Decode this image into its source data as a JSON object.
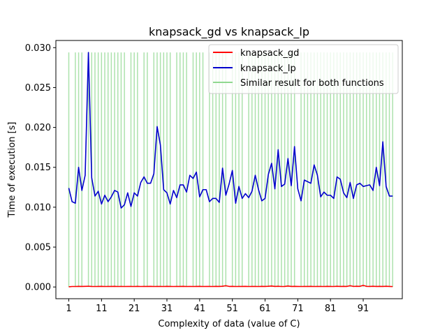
{
  "chart_data": {
    "type": "line",
    "title": "knapsack_gd vs knapsack_lp",
    "xlabel": "Complexity of data (value of C)",
    "ylabel": "Time of execution [s]",
    "xlim": [
      -2.95,
      102.95
    ],
    "ylim": [
      -0.00147,
      0.0309
    ],
    "xticks": [
      1,
      11,
      21,
      31,
      41,
      51,
      61,
      71,
      81,
      91
    ],
    "yticks": [
      0.0,
      0.005,
      0.01,
      0.015,
      0.02,
      0.025,
      0.03
    ],
    "ytick_labels": [
      "0.000",
      "0.005",
      "0.010",
      "0.015",
      "0.020",
      "0.025",
      "0.030"
    ],
    "grid": false,
    "legend_position": "top-right",
    "x": [
      1,
      2,
      3,
      4,
      5,
      6,
      7,
      8,
      9,
      10,
      11,
      12,
      13,
      14,
      15,
      16,
      17,
      18,
      19,
      20,
      21,
      22,
      23,
      24,
      25,
      26,
      27,
      28,
      29,
      30,
      31,
      32,
      33,
      34,
      35,
      36,
      37,
      38,
      39,
      40,
      41,
      42,
      43,
      44,
      45,
      46,
      47,
      48,
      49,
      50,
      51,
      52,
      53,
      54,
      55,
      56,
      57,
      58,
      59,
      60,
      61,
      62,
      63,
      64,
      65,
      66,
      67,
      68,
      69,
      70,
      71,
      72,
      73,
      74,
      75,
      76,
      77,
      78,
      79,
      80,
      81,
      82,
      83,
      84,
      85,
      86,
      87,
      88,
      89,
      90,
      91,
      92,
      93,
      94,
      95,
      96,
      97,
      98,
      99,
      100
    ],
    "series": [
      {
        "name": "knapsack_gd",
        "color": "#ff0000",
        "values": [
          2e-05,
          6e-05,
          6e-05,
          8e-05,
          7e-05,
          8e-05,
          9e-05,
          7e-05,
          6e-05,
          7e-05,
          8e-05,
          6e-05,
          7e-05,
          7e-05,
          8e-05,
          6e-05,
          7e-05,
          6e-05,
          7e-05,
          7e-05,
          6e-05,
          8e-05,
          6e-05,
          7e-05,
          7e-05,
          8e-05,
          6e-05,
          7e-05,
          7e-05,
          6e-05,
          8e-05,
          7e-05,
          6e-05,
          7e-05,
          7e-05,
          8e-05,
          6e-05,
          7e-05,
          6e-05,
          7e-05,
          8e-05,
          6e-05,
          7e-05,
          7e-05,
          6e-05,
          8e-05,
          7e-05,
          9e-05,
          0.00016,
          7e-05,
          8e-05,
          6e-05,
          7e-05,
          7e-05,
          8e-05,
          6e-05,
          7e-05,
          7e-05,
          6e-05,
          8e-05,
          7e-05,
          9e-05,
          0.00012,
          7e-05,
          9e-05,
          6e-05,
          7e-05,
          0.00012,
          7e-05,
          8e-05,
          7e-05,
          6e-05,
          7e-05,
          7e-05,
          8e-05,
          6e-05,
          7e-05,
          7e-05,
          6e-05,
          8e-05,
          7e-05,
          6e-05,
          9e-05,
          7e-05,
          8e-05,
          7e-05,
          0.00016,
          7e-05,
          9e-05,
          8e-05,
          0.0002,
          8e-05,
          7e-05,
          9e-05,
          7e-05,
          8e-05,
          7e-05,
          9e-05,
          7e-05,
          5e-05
        ]
      },
      {
        "name": "knapsack_lp",
        "color": "#0000cc",
        "values": [
          0.0124,
          0.0107,
          0.0105,
          0.015,
          0.0121,
          0.014,
          0.0294,
          0.0137,
          0.0114,
          0.012,
          0.0104,
          0.0115,
          0.0107,
          0.0113,
          0.0121,
          0.0119,
          0.0099,
          0.0103,
          0.0118,
          0.0101,
          0.0118,
          0.0114,
          0.0131,
          0.0138,
          0.013,
          0.013,
          0.0142,
          0.0201,
          0.0178,
          0.0122,
          0.0118,
          0.0104,
          0.0121,
          0.0112,
          0.0128,
          0.0128,
          0.0119,
          0.014,
          0.0136,
          0.0144,
          0.0113,
          0.0122,
          0.0122,
          0.0107,
          0.0111,
          0.0111,
          0.0106,
          0.0149,
          0.0115,
          0.0129,
          0.0146,
          0.0105,
          0.0126,
          0.0111,
          0.0117,
          0.0112,
          0.012,
          0.014,
          0.0122,
          0.0108,
          0.0111,
          0.0141,
          0.0155,
          0.0123,
          0.0172,
          0.0126,
          0.0129,
          0.0161,
          0.0127,
          0.0176,
          0.0123,
          0.0108,
          0.0134,
          0.0132,
          0.013,
          0.0153,
          0.014,
          0.0113,
          0.0119,
          0.0115,
          0.0115,
          0.0111,
          0.0138,
          0.0135,
          0.0118,
          0.0112,
          0.0131,
          0.0111,
          0.0128,
          0.013,
          0.0126,
          0.0127,
          0.0128,
          0.0121,
          0.015,
          0.0127,
          0.0182,
          0.0126,
          0.0114,
          0.0114
        ]
      }
    ],
    "similar_marker": {
      "name": "Similar result for both functions",
      "color": "#90d890",
      "height": 0.0294,
      "x": [
        1,
        3,
        4,
        5,
        7,
        8,
        9,
        10,
        11,
        12,
        13,
        14,
        15,
        16,
        17,
        18,
        20,
        21,
        22,
        24,
        25,
        27,
        28,
        29,
        30,
        31,
        32,
        34,
        35,
        36,
        37,
        39,
        40,
        41,
        42,
        44,
        45,
        46,
        47,
        48,
        49,
        51,
        52,
        53,
        54,
        56,
        57,
        58,
        59,
        60,
        61,
        62,
        63,
        64,
        65,
        66,
        67,
        68,
        69,
        70,
        72,
        73,
        74,
        75,
        76,
        77,
        78,
        79,
        80,
        81,
        82,
        83,
        84,
        85,
        86,
        87,
        88,
        89,
        90,
        91,
        92,
        93,
        94,
        95,
        96,
        97,
        98,
        99,
        100
      ]
    }
  }
}
